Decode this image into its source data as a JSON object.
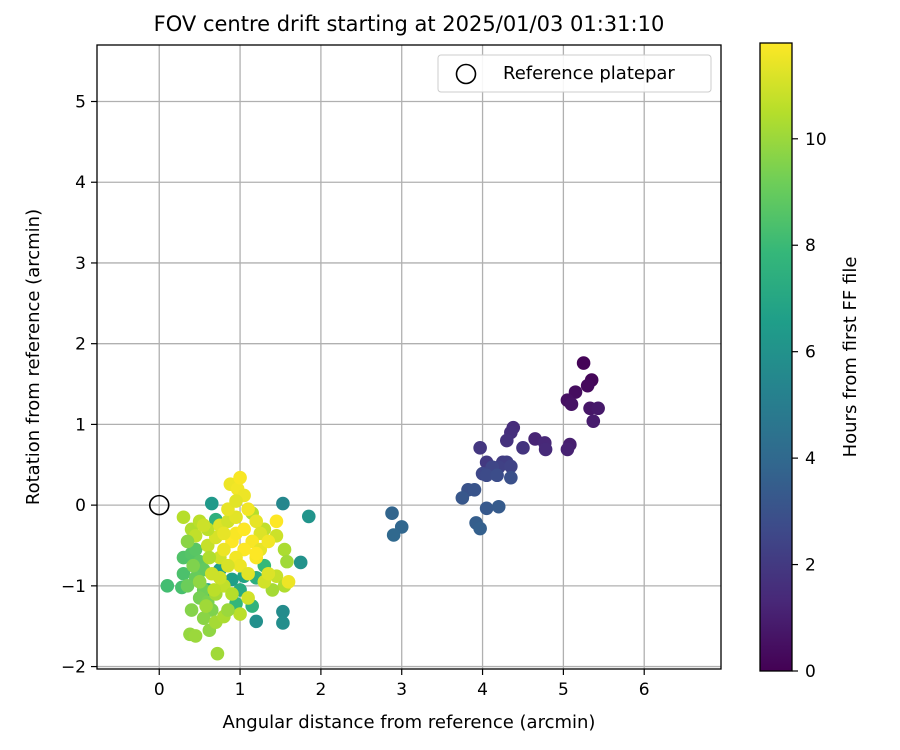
{
  "chart_data": {
    "type": "scatter",
    "title": "FOV centre drift starting at 2025/01/03 01:31:10",
    "xlabel": "Angular distance from reference (arcmin)",
    "ylabel": "Rotation from reference (arcmin)",
    "xlim": [
      -0.77,
      6.95
    ],
    "ylim": [
      -2.03,
      5.7
    ],
    "xticks": [
      0,
      1,
      2,
      3,
      4,
      5,
      6
    ],
    "yticks": [
      -2,
      -1,
      0,
      1,
      2,
      3,
      4,
      5
    ],
    "grid": true,
    "legend": {
      "position": "top-right",
      "entries": [
        "Reference platepar"
      ]
    },
    "reference_point": {
      "x": 0,
      "y": 0,
      "label": "Reference platepar"
    },
    "colorbar": {
      "label": "Hours from first FF file",
      "colormap": "viridis",
      "range": [
        0,
        11.8
      ],
      "ticks": [
        0,
        2,
        4,
        6,
        8,
        10
      ]
    },
    "colormap_stops": [
      "#440154",
      "#482878",
      "#3e4989",
      "#31688e",
      "#26828e",
      "#1f9e89",
      "#35b779",
      "#6ece58",
      "#b5de2b",
      "#fde725"
    ],
    "points": [
      {
        "x": 5.25,
        "y": 1.76,
        "h": 0.1
      },
      {
        "x": 5.35,
        "y": 1.55,
        "h": 0.2
      },
      {
        "x": 5.3,
        "y": 1.48,
        "h": 0.3
      },
      {
        "x": 5.15,
        "y": 1.4,
        "h": 0.4
      },
      {
        "x": 5.05,
        "y": 1.3,
        "h": 0.5
      },
      {
        "x": 5.1,
        "y": 1.25,
        "h": 0.6
      },
      {
        "x": 5.33,
        "y": 1.2,
        "h": 0.7
      },
      {
        "x": 5.43,
        "y": 1.2,
        "h": 0.8
      },
      {
        "x": 5.37,
        "y": 1.04,
        "h": 0.9
      },
      {
        "x": 5.08,
        "y": 0.75,
        "h": 1.0
      },
      {
        "x": 5.05,
        "y": 0.69,
        "h": 1.1
      },
      {
        "x": 4.65,
        "y": 0.82,
        "h": 1.2
      },
      {
        "x": 4.77,
        "y": 0.77,
        "h": 1.3
      },
      {
        "x": 4.78,
        "y": 0.69,
        "h": 1.4
      },
      {
        "x": 4.38,
        "y": 0.96,
        "h": 1.5
      },
      {
        "x": 4.35,
        "y": 0.9,
        "h": 1.6
      },
      {
        "x": 4.3,
        "y": 0.8,
        "h": 1.7
      },
      {
        "x": 4.5,
        "y": 0.71,
        "h": 1.8
      },
      {
        "x": 3.97,
        "y": 0.71,
        "h": 1.9
      },
      {
        "x": 4.05,
        "y": 0.53,
        "h": 2.0
      },
      {
        "x": 4.25,
        "y": 0.53,
        "h": 2.1
      },
      {
        "x": 4.3,
        "y": 0.53,
        "h": 2.2
      },
      {
        "x": 4.2,
        "y": 0.47,
        "h": 2.3
      },
      {
        "x": 4.35,
        "y": 0.48,
        "h": 2.4
      },
      {
        "x": 4.12,
        "y": 0.47,
        "h": 2.5
      },
      {
        "x": 4.0,
        "y": 0.39,
        "h": 2.6
      },
      {
        "x": 4.05,
        "y": 0.37,
        "h": 2.7
      },
      {
        "x": 4.18,
        "y": 0.37,
        "h": 2.8
      },
      {
        "x": 4.35,
        "y": 0.34,
        "h": 2.9
      },
      {
        "x": 3.82,
        "y": 0.19,
        "h": 3.0
      },
      {
        "x": 3.9,
        "y": 0.19,
        "h": 3.1
      },
      {
        "x": 3.75,
        "y": 0.09,
        "h": 3.2
      },
      {
        "x": 4.05,
        "y": -0.04,
        "h": 3.3
      },
      {
        "x": 4.2,
        "y": -0.02,
        "h": 3.4
      },
      {
        "x": 3.92,
        "y": -0.22,
        "h": 3.5
      },
      {
        "x": 3.97,
        "y": -0.29,
        "h": 3.6
      },
      {
        "x": 2.88,
        "y": -0.1,
        "h": 3.8
      },
      {
        "x": 3.0,
        "y": -0.27,
        "h": 3.9
      },
      {
        "x": 2.9,
        "y": -0.37,
        "h": 4.0
      },
      {
        "x": 1.53,
        "y": 0.02,
        "h": 5.5
      },
      {
        "x": 1.53,
        "y": -1.32,
        "h": 5.7
      },
      {
        "x": 1.53,
        "y": -1.46,
        "h": 5.8
      },
      {
        "x": 1.2,
        "y": -1.44,
        "h": 5.9
      },
      {
        "x": 1.75,
        "y": -0.71,
        "h": 6.0
      },
      {
        "x": 1.85,
        "y": -0.14,
        "h": 6.1
      },
      {
        "x": 0.65,
        "y": 0.02,
        "h": 6.3
      },
      {
        "x": 0.75,
        "y": -0.8,
        "h": 6.5
      },
      {
        "x": 0.9,
        "y": -0.92,
        "h": 6.6
      },
      {
        "x": 1.05,
        "y": -0.88,
        "h": 6.8
      },
      {
        "x": 0.6,
        "y": -1.05,
        "h": 7.0
      },
      {
        "x": 1.0,
        "y": -1.05,
        "h": 7.2
      },
      {
        "x": 1.2,
        "y": -0.9,
        "h": 7.4
      },
      {
        "x": 0.7,
        "y": -0.18,
        "h": 7.5
      },
      {
        "x": 1.15,
        "y": -1.25,
        "h": 7.6
      },
      {
        "x": 0.95,
        "y": -1.22,
        "h": 7.8
      },
      {
        "x": 1.3,
        "y": -0.75,
        "h": 7.9
      },
      {
        "x": 0.1,
        "y": -1.0,
        "h": 8.2
      },
      {
        "x": 0.28,
        "y": -1.02,
        "h": 8.3
      },
      {
        "x": 0.3,
        "y": -0.85,
        "h": 8.4
      },
      {
        "x": 0.3,
        "y": -0.65,
        "h": 8.5
      },
      {
        "x": 0.4,
        "y": -0.6,
        "h": 8.6
      },
      {
        "x": 0.45,
        "y": -0.55,
        "h": 8.7
      },
      {
        "x": 0.5,
        "y": -0.7,
        "h": 8.8
      },
      {
        "x": 0.55,
        "y": -0.8,
        "h": 8.9
      },
      {
        "x": 0.45,
        "y": -0.9,
        "h": 9.0
      },
      {
        "x": 0.35,
        "y": -1.0,
        "h": 9.1
      },
      {
        "x": 0.55,
        "y": -1.05,
        "h": 9.2
      },
      {
        "x": 0.5,
        "y": -1.15,
        "h": 9.3
      },
      {
        "x": 0.6,
        "y": -1.2,
        "h": 9.4
      },
      {
        "x": 0.65,
        "y": -1.3,
        "h": 9.5
      },
      {
        "x": 0.4,
        "y": -1.3,
        "h": 9.6
      },
      {
        "x": 0.55,
        "y": -1.4,
        "h": 9.7
      },
      {
        "x": 0.62,
        "y": -1.55,
        "h": 9.8
      },
      {
        "x": 0.38,
        "y": -1.6,
        "h": 9.9
      },
      {
        "x": 0.45,
        "y": -1.62,
        "h": 10.0
      },
      {
        "x": 0.72,
        "y": -1.84,
        "h": 10.1
      },
      {
        "x": 0.7,
        "y": -1.45,
        "h": 10.2
      },
      {
        "x": 0.8,
        "y": -1.38,
        "h": 10.3
      },
      {
        "x": 0.4,
        "y": -0.3,
        "h": 10.4
      },
      {
        "x": 0.3,
        "y": -0.15,
        "h": 10.5
      },
      {
        "x": 0.5,
        "y": -0.2,
        "h": 10.6
      },
      {
        "x": 0.45,
        "y": -0.38,
        "h": 10.7
      },
      {
        "x": 1.15,
        "y": -0.1,
        "h": 10.5
      },
      {
        "x": 1.3,
        "y": -0.3,
        "h": 10.7
      },
      {
        "x": 1.45,
        "y": -0.38,
        "h": 10.9
      },
      {
        "x": 1.55,
        "y": -0.55,
        "h": 10.3
      },
      {
        "x": 1.58,
        "y": -0.7,
        "h": 10.1
      },
      {
        "x": 1.45,
        "y": -0.88,
        "h": 10.8
      },
      {
        "x": 1.55,
        "y": -1.0,
        "h": 10.4
      },
      {
        "x": 1.4,
        "y": -1.05,
        "h": 10.2
      },
      {
        "x": 1.3,
        "y": -0.95,
        "h": 11.0
      },
      {
        "x": 1.0,
        "y": -1.35,
        "h": 10.6
      },
      {
        "x": 0.85,
        "y": -1.3,
        "h": 10.0
      },
      {
        "x": 0.7,
        "y": -1.1,
        "h": 10.2
      },
      {
        "x": 0.8,
        "y": -1.0,
        "h": 10.7
      },
      {
        "x": 0.65,
        "y": -0.85,
        "h": 10.9
      },
      {
        "x": 0.75,
        "y": -0.65,
        "h": 11.0
      },
      {
        "x": 0.6,
        "y": -0.5,
        "h": 10.8
      },
      {
        "x": 0.7,
        "y": -0.4,
        "h": 11.1
      },
      {
        "x": 0.6,
        "y": -0.3,
        "h": 10.6
      },
      {
        "x": 0.75,
        "y": -0.25,
        "h": 11.2
      },
      {
        "x": 0.85,
        "y": -0.2,
        "h": 11.0
      },
      {
        "x": 0.95,
        "y": -0.15,
        "h": 11.3
      },
      {
        "x": 0.85,
        "y": -0.05,
        "h": 11.4
      },
      {
        "x": 0.88,
        "y": 0.26,
        "h": 11.5
      },
      {
        "x": 0.97,
        "y": 0.2,
        "h": 11.6
      },
      {
        "x": 1.0,
        "y": 0.34,
        "h": 11.7
      },
      {
        "x": 1.05,
        "y": 0.12,
        "h": 11.5
      },
      {
        "x": 0.95,
        "y": 0.05,
        "h": 11.3
      },
      {
        "x": 1.1,
        "y": -0.05,
        "h": 11.6
      },
      {
        "x": 1.2,
        "y": -0.2,
        "h": 11.4
      },
      {
        "x": 1.25,
        "y": -0.35,
        "h": 11.2
      },
      {
        "x": 1.15,
        "y": -0.45,
        "h": 11.7
      },
      {
        "x": 1.05,
        "y": -0.55,
        "h": 11.8
      },
      {
        "x": 0.95,
        "y": -0.65,
        "h": 11.6
      },
      {
        "x": 1.0,
        "y": -0.75,
        "h": 11.5
      },
      {
        "x": 1.1,
        "y": -0.85,
        "h": 11.3
      },
      {
        "x": 1.2,
        "y": -0.65,
        "h": 11.7
      },
      {
        "x": 1.25,
        "y": -0.55,
        "h": 11.4
      },
      {
        "x": 0.9,
        "y": -0.45,
        "h": 11.8
      },
      {
        "x": 0.8,
        "y": -0.55,
        "h": 11.5
      },
      {
        "x": 0.85,
        "y": -0.75,
        "h": 11.1
      },
      {
        "x": 0.75,
        "y": -0.9,
        "h": 10.9
      },
      {
        "x": 0.9,
        "y": -1.1,
        "h": 10.5
      },
      {
        "x": 1.1,
        "y": -1.15,
        "h": 11.0
      },
      {
        "x": 1.35,
        "y": -0.45,
        "h": 11.6
      },
      {
        "x": 1.45,
        "y": -0.2,
        "h": 11.8
      },
      {
        "x": 1.35,
        "y": -0.85,
        "h": 11.2
      },
      {
        "x": 1.6,
        "y": -0.95,
        "h": 11.5
      },
      {
        "x": 0.95,
        "y": -0.35,
        "h": 11.7
      },
      {
        "x": 1.05,
        "y": -0.3,
        "h": 11.8
      },
      {
        "x": 0.8,
        "y": -0.35,
        "h": 11.4
      },
      {
        "x": 0.55,
        "y": -0.25,
        "h": 10.9
      },
      {
        "x": 0.62,
        "y": -0.65,
        "h": 10.4
      },
      {
        "x": 0.5,
        "y": -0.95,
        "h": 9.8
      },
      {
        "x": 0.42,
        "y": -0.75,
        "h": 9.5
      },
      {
        "x": 0.35,
        "y": -0.45,
        "h": 9.7
      },
      {
        "x": 0.58,
        "y": -1.25,
        "h": 10.1
      },
      {
        "x": 0.68,
        "y": -1.05,
        "h": 10.6
      },
      {
        "x": 1.2,
        "y": -0.6,
        "h": 11.9
      }
    ]
  }
}
